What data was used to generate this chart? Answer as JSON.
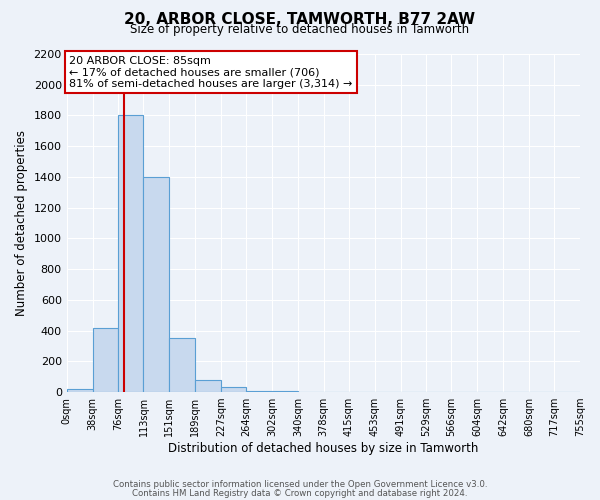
{
  "title": "20, ARBOR CLOSE, TAMWORTH, B77 2AW",
  "subtitle": "Size of property relative to detached houses in Tamworth",
  "xlabel": "Distribution of detached houses by size in Tamworth",
  "ylabel": "Number of detached properties",
  "bin_edges": [
    0,
    38,
    76,
    113,
    151,
    189,
    227,
    264,
    302,
    340,
    378,
    415,
    453,
    491,
    529,
    566,
    604,
    642,
    680,
    717,
    755
  ],
  "bar_heights": [
    20,
    420,
    1800,
    1400,
    350,
    80,
    30,
    10,
    5,
    3,
    2,
    2,
    2,
    1,
    1,
    1,
    1,
    1,
    1,
    1
  ],
  "bar_color": "#c8d9ee",
  "bar_edge_color": "#5a9fd4",
  "property_size": 85,
  "vline_color": "#cc0000",
  "annotation_line1": "20 ARBOR CLOSE: 85sqm",
  "annotation_line2": "← 17% of detached houses are smaller (706)",
  "annotation_line3": "81% of semi-detached houses are larger (3,314) →",
  "annotation_box_color": "#ffffff",
  "annotation_box_edge_color": "#cc0000",
  "ylim": [
    0,
    2200
  ],
  "xlim": [
    0,
    755
  ],
  "yticks": [
    0,
    200,
    400,
    600,
    800,
    1000,
    1200,
    1400,
    1600,
    1800,
    2000,
    2200
  ],
  "xtick_labels": [
    "0sqm",
    "38sqm",
    "76sqm",
    "113sqm",
    "151sqm",
    "189sqm",
    "227sqm",
    "264sqm",
    "302sqm",
    "340sqm",
    "378sqm",
    "415sqm",
    "453sqm",
    "491sqm",
    "529sqm",
    "566sqm",
    "604sqm",
    "642sqm",
    "680sqm",
    "717sqm",
    "755sqm"
  ],
  "bg_color": "#edf2f9",
  "grid_color": "#ffffff",
  "footer_line1": "Contains HM Land Registry data © Crown copyright and database right 2024.",
  "footer_line2": "Contains public sector information licensed under the Open Government Licence v3.0."
}
